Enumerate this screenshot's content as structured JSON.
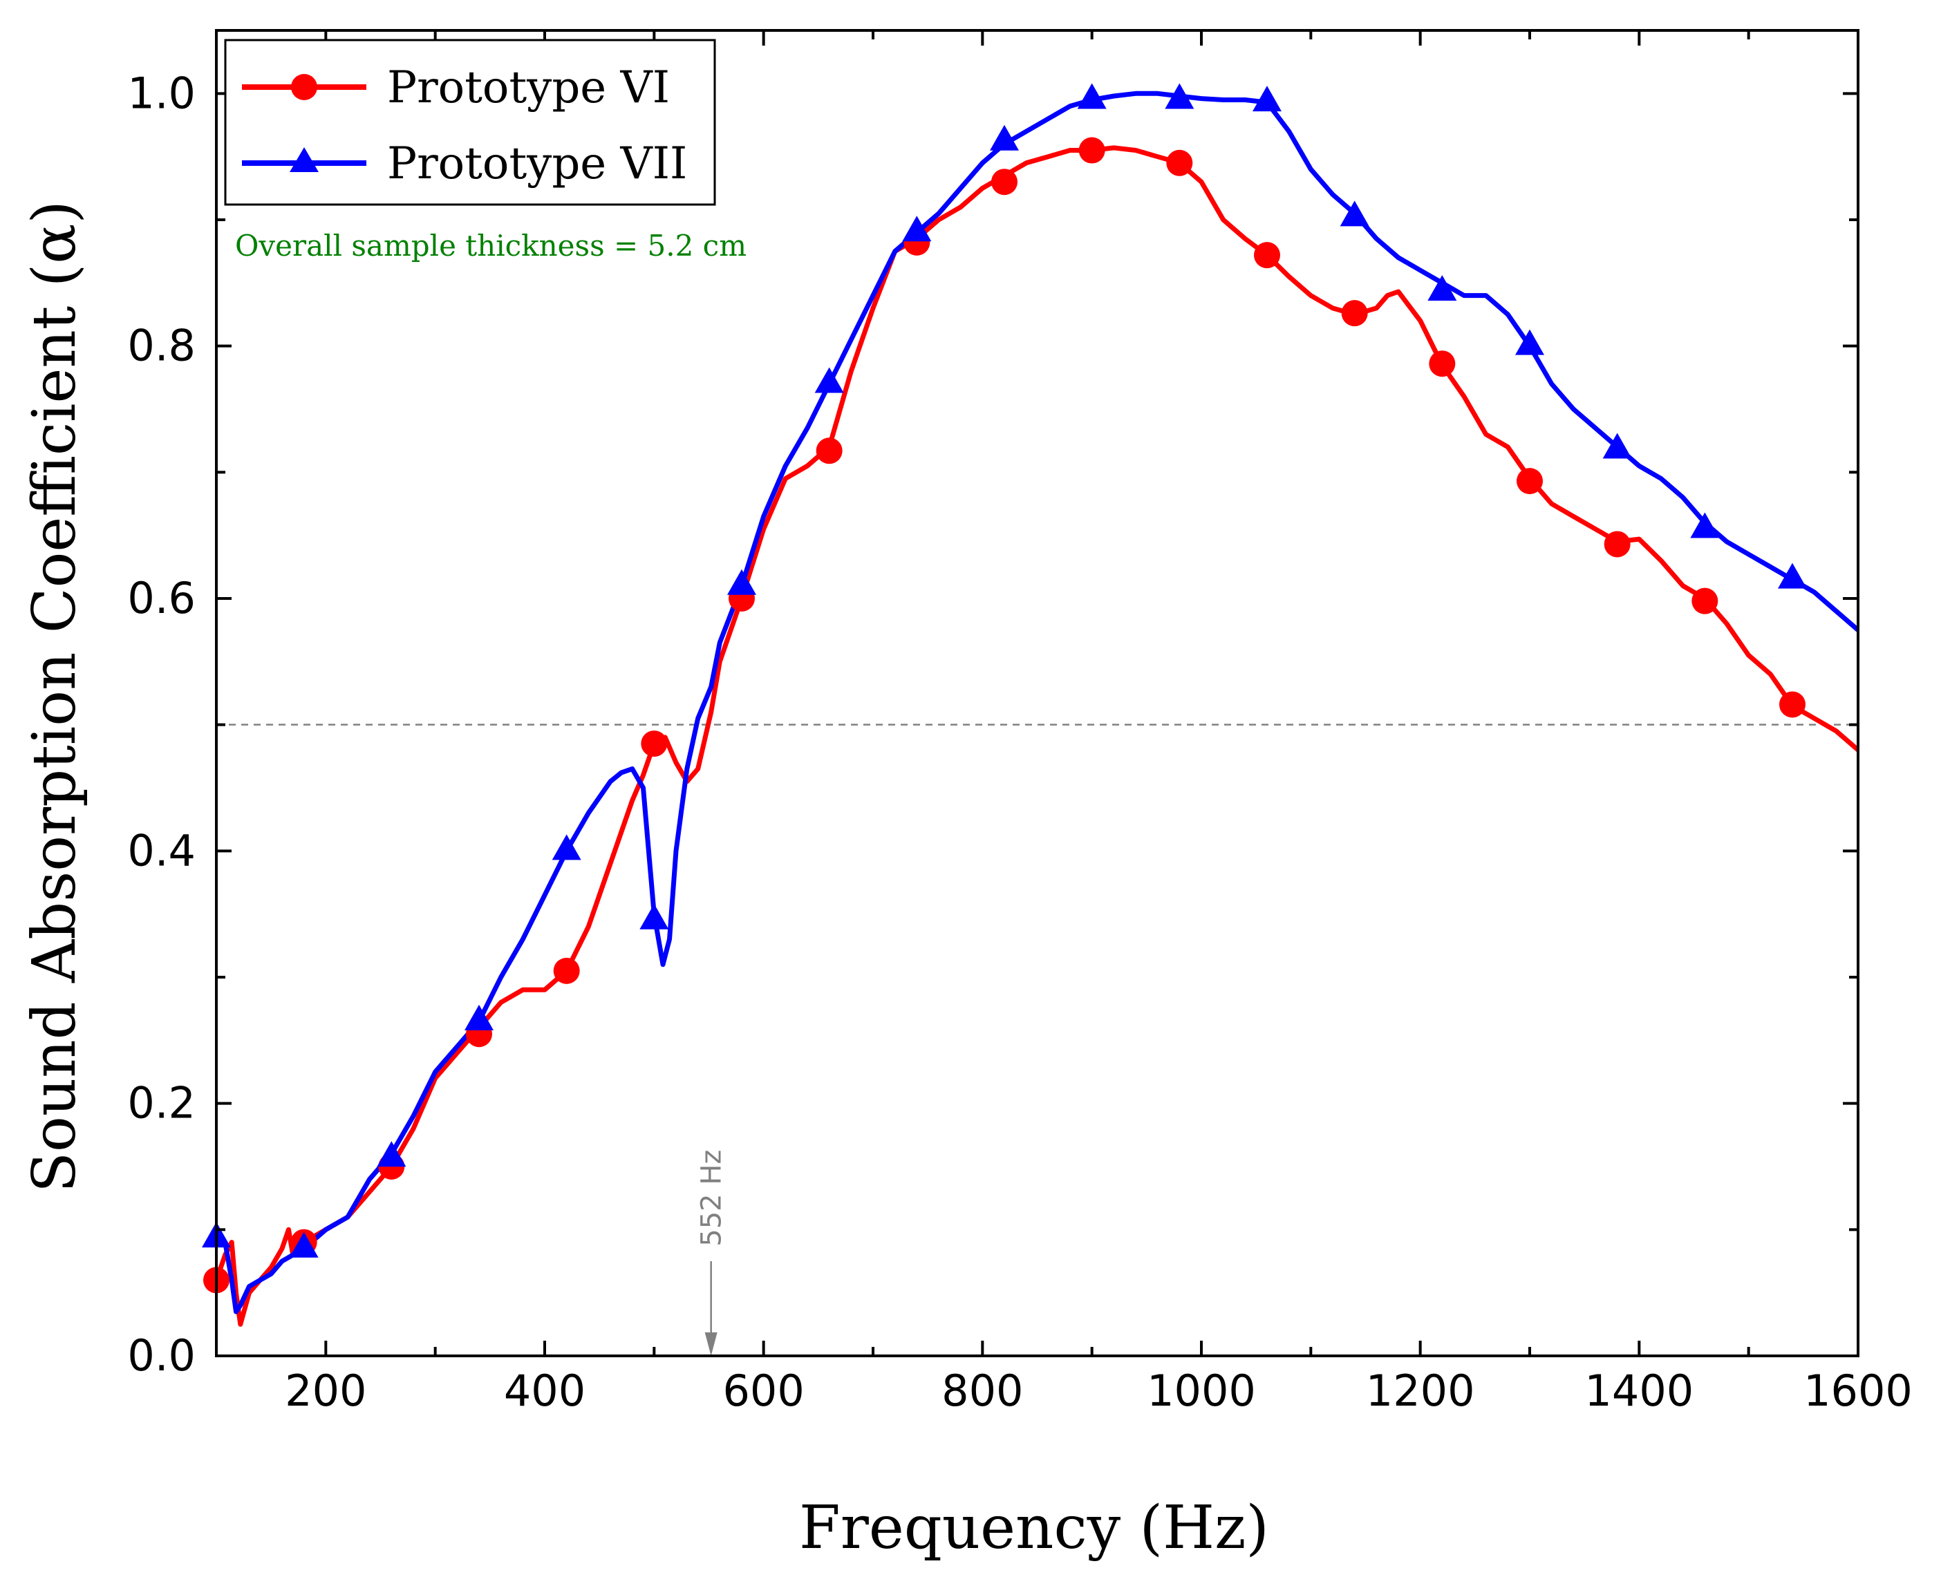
{
  "chart_data": {
    "type": "line",
    "xlabel": "Frequency (Hz)",
    "ylabel": "Sound Absorption Coefficient (α)",
    "xlim": [
      100,
      1600
    ],
    "ylim": [
      0,
      1.05
    ],
    "x_ticks": [
      200,
      400,
      600,
      800,
      1000,
      1200,
      1400,
      1600
    ],
    "x_tick_labels": [
      "200",
      "400",
      "600",
      "800",
      "1000",
      "1200",
      "1400",
      "1600"
    ],
    "y_ticks": [
      0.0,
      0.2,
      0.4,
      0.6,
      0.8,
      1.0
    ],
    "y_tick_labels": [
      "0.0",
      "0.2",
      "0.4",
      "0.6",
      "0.8",
      "1.0"
    ],
    "grid": false,
    "legend_position": "top-left",
    "annotation": "Overall sample thickness = 5.2 cm",
    "reference_line": {
      "y": 0.5,
      "style": "dashed"
    },
    "marker_annotation": {
      "x": 552,
      "label": "552 Hz"
    },
    "series": [
      {
        "name": "Prototype VI",
        "color": "#ff0000",
        "marker": "circle",
        "x": [
          100,
          108,
          114,
          118,
          122,
          130,
          140,
          150,
          160,
          166,
          170,
          180,
          200,
          220,
          240,
          260,
          280,
          300,
          320,
          340,
          360,
          380,
          400,
          420,
          440,
          460,
          480,
          490,
          500,
          510,
          520,
          530,
          540,
          552,
          560,
          580,
          600,
          620,
          640,
          660,
          680,
          700,
          720,
          740,
          760,
          780,
          800,
          820,
          840,
          860,
          880,
          900,
          920,
          940,
          960,
          980,
          1000,
          1020,
          1040,
          1060,
          1080,
          1100,
          1120,
          1140,
          1160,
          1170,
          1180,
          1200,
          1220,
          1240,
          1260,
          1280,
          1300,
          1320,
          1340,
          1360,
          1380,
          1400,
          1420,
          1440,
          1460,
          1480,
          1500,
          1520,
          1540,
          1560,
          1580,
          1600
        ],
        "y": [
          0.06,
          0.08,
          0.09,
          0.05,
          0.025,
          0.05,
          0.06,
          0.07,
          0.085,
          0.1,
          0.08,
          0.09,
          0.1,
          0.11,
          0.13,
          0.15,
          0.18,
          0.22,
          0.24,
          0.26,
          0.28,
          0.29,
          0.29,
          0.305,
          0.34,
          0.39,
          0.44,
          0.46,
          0.485,
          0.49,
          0.47,
          0.455,
          0.465,
          0.51,
          0.55,
          0.6,
          0.655,
          0.695,
          0.705,
          0.72,
          0.78,
          0.83,
          0.875,
          0.885,
          0.9,
          0.91,
          0.925,
          0.935,
          0.945,
          0.95,
          0.955,
          0.955,
          0.957,
          0.955,
          0.95,
          0.945,
          0.93,
          0.9,
          0.885,
          0.872,
          0.855,
          0.84,
          0.83,
          0.825,
          0.83,
          0.84,
          0.843,
          0.82,
          0.785,
          0.76,
          0.73,
          0.72,
          0.695,
          0.675,
          0.665,
          0.655,
          0.645,
          0.647,
          0.63,
          0.61,
          0.6,
          0.58,
          0.555,
          0.54,
          0.515,
          0.505,
          0.495,
          0.48
        ]
      },
      {
        "name": "Prototype VII",
        "color": "#0000ff",
        "marker": "triangle",
        "x": [
          100,
          108,
          114,
          118,
          122,
          130,
          140,
          150,
          160,
          180,
          200,
          220,
          240,
          260,
          280,
          300,
          320,
          340,
          360,
          380,
          400,
          420,
          440,
          460,
          470,
          480,
          490,
          500,
          508,
          514,
          520,
          530,
          540,
          552,
          560,
          580,
          600,
          620,
          640,
          660,
          680,
          700,
          720,
          740,
          760,
          780,
          800,
          820,
          840,
          860,
          880,
          900,
          920,
          940,
          960,
          980,
          1000,
          1020,
          1040,
          1060,
          1080,
          1100,
          1120,
          1140,
          1160,
          1180,
          1200,
          1220,
          1240,
          1260,
          1280,
          1300,
          1320,
          1340,
          1360,
          1380,
          1400,
          1420,
          1440,
          1460,
          1480,
          1500,
          1520,
          1540,
          1560,
          1580,
          1600
        ],
        "y": [
          0.095,
          0.09,
          0.06,
          0.035,
          0.04,
          0.055,
          0.06,
          0.065,
          0.075,
          0.085,
          0.1,
          0.11,
          0.14,
          0.16,
          0.19,
          0.225,
          0.245,
          0.265,
          0.3,
          0.33,
          0.365,
          0.4,
          0.43,
          0.455,
          0.462,
          0.465,
          0.45,
          0.35,
          0.31,
          0.33,
          0.4,
          0.465,
          0.505,
          0.53,
          0.565,
          0.61,
          0.665,
          0.705,
          0.735,
          0.77,
          0.805,
          0.84,
          0.875,
          0.89,
          0.905,
          0.925,
          0.945,
          0.96,
          0.97,
          0.98,
          0.99,
          0.995,
          0.998,
          1.0,
          1.0,
          0.998,
          0.996,
          0.995,
          0.995,
          0.993,
          0.97,
          0.94,
          0.92,
          0.905,
          0.885,
          0.87,
          0.86,
          0.85,
          0.84,
          0.84,
          0.825,
          0.8,
          0.77,
          0.75,
          0.735,
          0.72,
          0.705,
          0.695,
          0.68,
          0.66,
          0.645,
          0.635,
          0.625,
          0.615,
          0.605,
          0.59,
          0.575
        ]
      }
    ],
    "marker_positions": {
      "Prototype VI": [
        [
          100,
          0.06
        ],
        [
          180,
          0.09
        ],
        [
          260,
          0.15
        ],
        [
          340,
          0.255
        ],
        [
          420,
          0.305
        ],
        [
          500,
          0.485
        ],
        [
          580,
          0.6
        ],
        [
          660,
          0.717
        ],
        [
          740,
          0.882
        ],
        [
          820,
          0.93
        ],
        [
          900,
          0.955
        ],
        [
          980,
          0.945
        ],
        [
          1060,
          0.872
        ],
        [
          1140,
          0.826
        ],
        [
          1220,
          0.786
        ],
        [
          1300,
          0.693
        ],
        [
          1380,
          0.643
        ],
        [
          1460,
          0.598
        ],
        [
          1540,
          0.516
        ]
      ],
      "Prototype VII": [
        [
          100,
          0.093
        ],
        [
          180,
          0.085
        ],
        [
          260,
          0.157
        ],
        [
          340,
          0.265
        ],
        [
          420,
          0.4
        ],
        [
          500,
          0.345
        ],
        [
          580,
          0.61
        ],
        [
          660,
          0.77
        ],
        [
          740,
          0.89
        ],
        [
          820,
          0.962
        ],
        [
          900,
          0.995
        ],
        [
          980,
          0.995
        ],
        [
          1060,
          0.993
        ],
        [
          1140,
          0.902
        ],
        [
          1220,
          0.843
        ],
        [
          1300,
          0.8
        ],
        [
          1380,
          0.718
        ],
        [
          1460,
          0.655
        ],
        [
          1540,
          0.615
        ]
      ]
    }
  }
}
